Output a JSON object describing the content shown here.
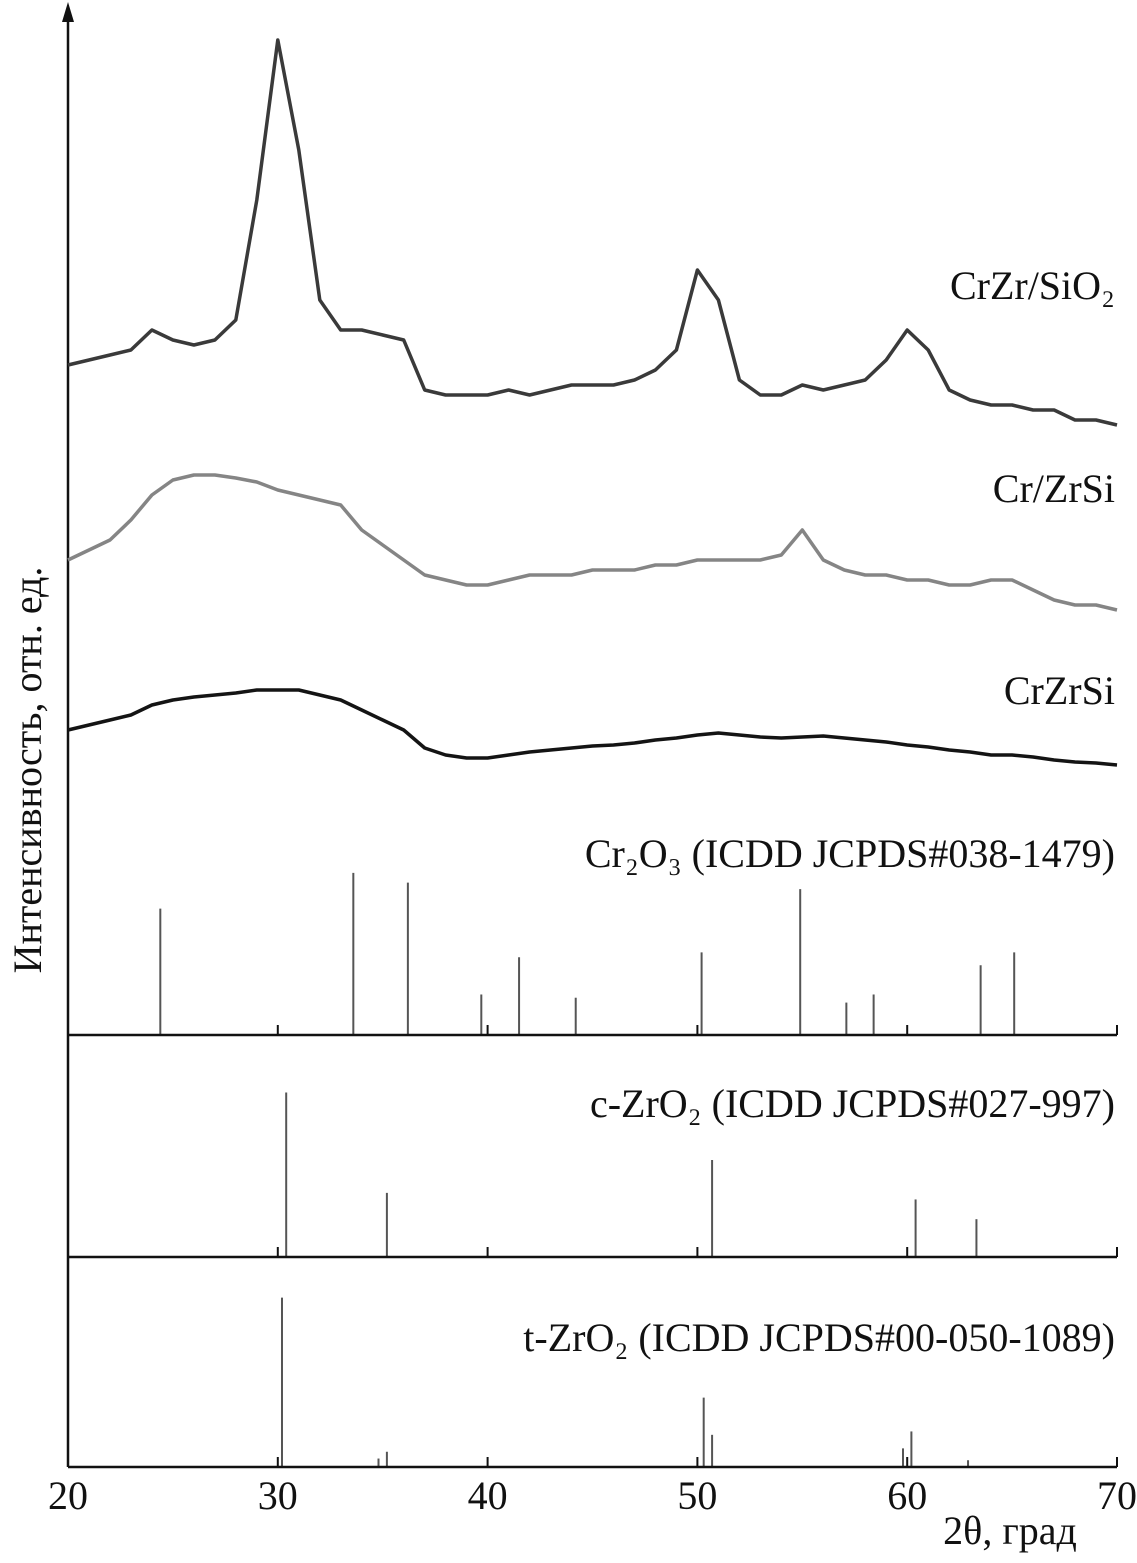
{
  "chart_data": [
    {
      "type": "line",
      "y_label": "Интенсивность, отн. ед.",
      "x": [
        20,
        21,
        22,
        23,
        24,
        25,
        26,
        27,
        28,
        29,
        30,
        31,
        32,
        33,
        34,
        35,
        36,
        37,
        38,
        39,
        40,
        41,
        42,
        43,
        44,
        45,
        46,
        47,
        48,
        49,
        50,
        51,
        52,
        53,
        54,
        55,
        56,
        57,
        58,
        59,
        60,
        61,
        62,
        63,
        64,
        65,
        66,
        67,
        68,
        69,
        70
      ],
      "series": [
        {
          "name": "CrZr/SiO₂",
          "color": "#3a3a3a",
          "values": [
            435,
            440,
            445,
            450,
            470,
            460,
            455,
            460,
            480,
            600,
            760,
            650,
            500,
            470,
            470,
            465,
            460,
            410,
            405,
            405,
            405,
            410,
            405,
            410,
            415,
            415,
            415,
            420,
            430,
            450,
            530,
            500,
            420,
            405,
            405,
            415,
            410,
            415,
            420,
            440,
            470,
            450,
            410,
            400,
            395,
            395,
            390,
            390,
            380,
            380,
            375
          ]
        },
        {
          "name": "Cr/ZrSi",
          "color": "#858585",
          "values": [
            240,
            250,
            260,
            280,
            305,
            320,
            325,
            325,
            322,
            318,
            310,
            305,
            300,
            295,
            270,
            255,
            240,
            225,
            220,
            215,
            215,
            220,
            225,
            225,
            225,
            230,
            230,
            230,
            235,
            235,
            240,
            240,
            240,
            240,
            245,
            270,
            240,
            230,
            225,
            225,
            220,
            220,
            215,
            215,
            220,
            220,
            210,
            200,
            195,
            195,
            190
          ]
        },
        {
          "name": "CrZrSi",
          "color": "#141414",
          "values": [
            70,
            75,
            80,
            85,
            95,
            100,
            103,
            105,
            107,
            110,
            110,
            110,
            105,
            100,
            90,
            80,
            70,
            52,
            45,
            42,
            42,
            45,
            48,
            50,
            52,
            54,
            55,
            57,
            60,
            62,
            65,
            67,
            65,
            63,
            62,
            63,
            64,
            62,
            60,
            58,
            55,
            53,
            50,
            48,
            45,
            45,
            43,
            40,
            38,
            37,
            35
          ]
        }
      ],
      "xlim": [
        20,
        70
      ],
      "ylim": [
        0,
        785
      ]
    },
    {
      "type": "stem",
      "title": "Cr₂O₃ (ICDD JCPDS#038-1479)",
      "x": [
        24.4,
        33.6,
        36.2,
        39.7,
        41.5,
        44.2,
        50.2,
        54.9,
        57.1,
        58.4,
        63.5,
        65.1
      ],
      "values": [
        78,
        100,
        94,
        25,
        48,
        23,
        51,
        90,
        20,
        25,
        43,
        51
      ],
      "color": "#555555",
      "xlim": [
        20,
        70
      ],
      "ylim": [
        0,
        145
      ]
    },
    {
      "type": "stem",
      "title": "c-ZrO₂ (ICDD JCPDS#027-997)",
      "x": [
        30.4,
        35.2,
        50.7,
        60.4,
        63.3
      ],
      "values": [
        100,
        39,
        59,
        35,
        23
      ],
      "color": "#555555",
      "xlim": [
        20,
        70
      ],
      "ylim": [
        0,
        135
      ]
    },
    {
      "type": "stem",
      "title": "t-ZrO₂ (ICDD JCPDS#00-050-1089)",
      "x": [
        30.2,
        34.8,
        35.2,
        50.3,
        50.7,
        59.8,
        60.2,
        62.9
      ],
      "values": [
        100,
        5,
        9,
        41,
        19,
        11,
        21,
        4
      ],
      "color": "#555555",
      "xlim": [
        20,
        70
      ],
      "ylim": [
        0,
        124
      ],
      "xticks": [
        20,
        30,
        40,
        50,
        60,
        70
      ],
      "x_label": "2θ, град"
    }
  ]
}
